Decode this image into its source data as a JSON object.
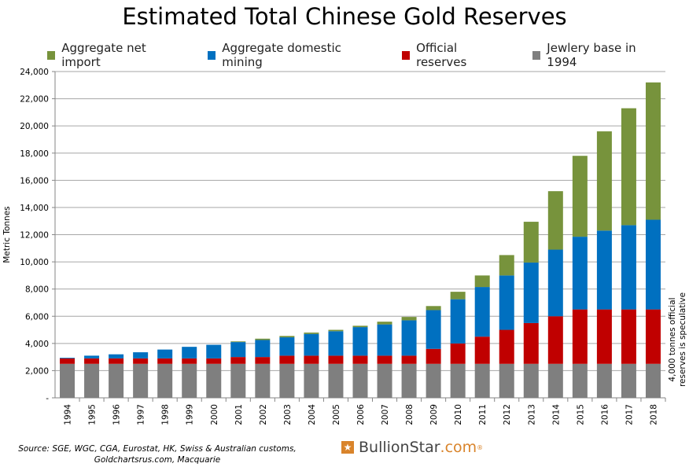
{
  "chart_data": {
    "type": "bar",
    "stacked": true,
    "title": "Estimated Total Chinese Gold Reserves",
    "ylabel": "Metric Tonnes",
    "xlabel": "",
    "ylim": [
      0,
      24000
    ],
    "yticks": [
      0,
      2000,
      4000,
      6000,
      8000,
      10000,
      12000,
      14000,
      16000,
      18000,
      20000,
      22000,
      24000
    ],
    "ytick_labels": [
      "-",
      "2,000",
      "4,000",
      "6,000",
      "8,000",
      "10,000",
      "12,000",
      "14,000",
      "16,000",
      "18,000",
      "20,000",
      "22,000",
      "24,000"
    ],
    "grid": true,
    "legend_position": "top",
    "categories": [
      "1994",
      "1995",
      "1996",
      "1997",
      "1998",
      "1999",
      "2000",
      "2001",
      "2002",
      "2003",
      "2004",
      "2005",
      "2006",
      "2007",
      "2008",
      "2009",
      "2010",
      "2011",
      "2012",
      "2013",
      "2014",
      "2015",
      "2016",
      "2017",
      "2018"
    ],
    "series": [
      {
        "name": "Jewlery base in 1994",
        "color": "#7f7f7f",
        "values": [
          2500,
          2500,
          2500,
          2500,
          2500,
          2500,
          2500,
          2500,
          2500,
          2500,
          2500,
          2500,
          2500,
          2500,
          2500,
          2500,
          2500,
          2500,
          2500,
          2500,
          2500,
          2500,
          2500,
          2500,
          2500
        ]
      },
      {
        "name": "Official reserves",
        "color": "#c00000",
        "values": [
          400,
          400,
          400,
          400,
          400,
          400,
          400,
          500,
          500,
          600,
          600,
          600,
          600,
          600,
          600,
          1100,
          1500,
          2000,
          2500,
          3000,
          3500,
          4000,
          4000,
          4000,
          4000
        ]
      },
      {
        "name": "Aggregate domestic mining",
        "color": "#0070c0",
        "values": [
          50,
          200,
          300,
          450,
          650,
          850,
          1000,
          1100,
          1250,
          1350,
          1600,
          1800,
          2100,
          2300,
          2600,
          2850,
          3250,
          3650,
          4000,
          4450,
          4900,
          5350,
          5800,
          6200,
          6600
        ]
      },
      {
        "name": "Aggregate net import",
        "color": "#77933c",
        "values": [
          0,
          0,
          0,
          0,
          0,
          0,
          0,
          50,
          100,
          100,
          100,
          100,
          100,
          200,
          250,
          300,
          550,
          850,
          1500,
          3000,
          4300,
          5950,
          7300,
          8600,
          10100
        ]
      }
    ],
    "legend_order": [
      "Aggregate net import",
      "Aggregate domestic mining",
      "Official reserves",
      "Jewlery base in 1994"
    ],
    "annotation": [
      "4,000 tonnes official",
      "reserves is speculative"
    ],
    "source": [
      "Source: SGE, WGC, CGA, Eurostat, HK, Swiss & Australian customs,",
      "Goldchartsrus.com, Macquarie"
    ],
    "logo": {
      "main": "BullionStar",
      "suffix": ".com",
      "mark": "®"
    }
  }
}
